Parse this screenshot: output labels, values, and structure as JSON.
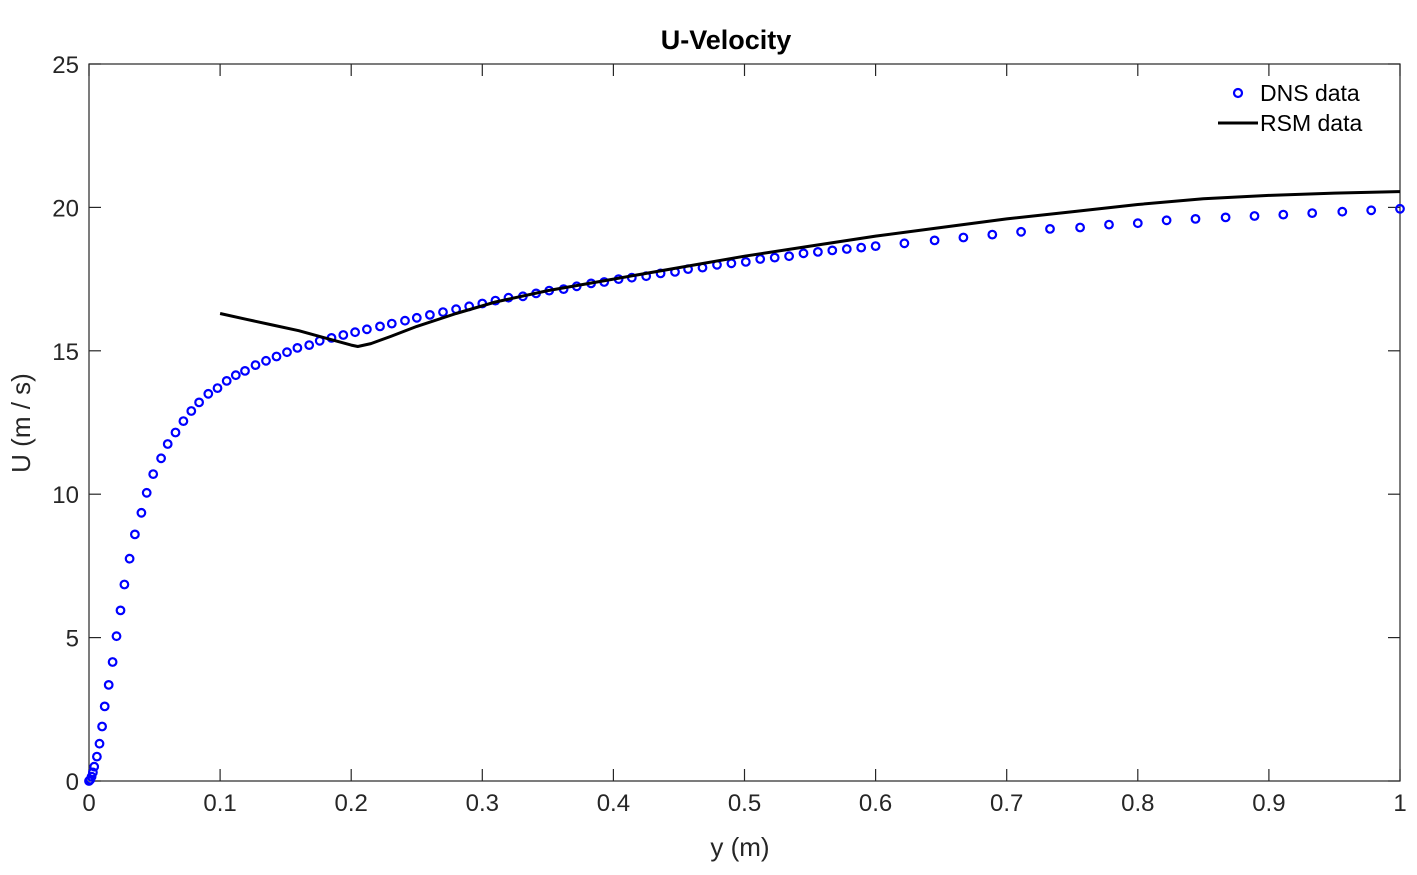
{
  "chart_data": {
    "type": "line",
    "title": "U-Velocity",
    "xlabel": "y (m)",
    "ylabel": "U (m / s)",
    "xlim": [
      0,
      1
    ],
    "ylim": [
      0,
      25
    ],
    "xticks": [
      "0",
      "0.1",
      "0.2",
      "0.3",
      "0.4",
      "0.5",
      "0.6",
      "0.7",
      "0.8",
      "0.9",
      "1"
    ],
    "yticks": [
      "0",
      "5",
      "10",
      "15",
      "20",
      "25"
    ],
    "grid": false,
    "legend_position": "top-right",
    "series": [
      {
        "name": "DNS data",
        "style": "markers",
        "color": "#0000ff",
        "x": [
          0.0,
          0.001,
          0.002,
          0.003,
          0.004,
          0.006,
          0.008,
          0.01,
          0.012,
          0.015,
          0.018,
          0.021,
          0.024,
          0.027,
          0.031,
          0.035,
          0.04,
          0.044,
          0.049,
          0.055,
          0.06,
          0.066,
          0.072,
          0.078,
          0.084,
          0.091,
          0.098,
          0.105,
          0.112,
          0.119,
          0.127,
          0.135,
          0.143,
          0.151,
          0.159,
          0.168,
          0.176,
          0.185,
          0.194,
          0.203,
          0.212,
          0.222,
          0.231,
          0.241,
          0.25,
          0.26,
          0.27,
          0.28,
          0.29,
          0.3,
          0.31,
          0.32,
          0.331,
          0.341,
          0.351,
          0.362,
          0.372,
          0.383,
          0.393,
          0.404,
          0.414,
          0.425,
          0.436,
          0.447,
          0.457,
          0.468,
          0.479,
          0.49,
          0.501,
          0.512,
          0.523,
          0.534,
          0.545,
          0.556,
          0.567,
          0.578,
          0.589,
          0.6,
          0.622,
          0.645,
          0.667,
          0.689,
          0.711,
          0.733,
          0.756,
          0.778,
          0.8,
          0.822,
          0.844,
          0.867,
          0.889,
          0.911,
          0.933,
          0.956,
          0.978,
          1.0
        ],
        "y": [
          0.0,
          0.05,
          0.15,
          0.3,
          0.5,
          0.85,
          1.3,
          1.9,
          2.6,
          3.35,
          4.15,
          5.05,
          5.95,
          6.85,
          7.75,
          8.6,
          9.35,
          10.05,
          10.7,
          11.25,
          11.75,
          12.15,
          12.55,
          12.9,
          13.2,
          13.5,
          13.7,
          13.95,
          14.15,
          14.3,
          14.5,
          14.65,
          14.8,
          14.95,
          15.1,
          15.2,
          15.35,
          15.45,
          15.55,
          15.65,
          15.75,
          15.85,
          15.95,
          16.05,
          16.15,
          16.25,
          16.35,
          16.45,
          16.55,
          16.65,
          16.75,
          16.85,
          16.9,
          17.0,
          17.1,
          17.15,
          17.25,
          17.35,
          17.4,
          17.5,
          17.55,
          17.6,
          17.7,
          17.75,
          17.85,
          17.9,
          18.0,
          18.05,
          18.1,
          18.2,
          18.25,
          18.3,
          18.4,
          18.45,
          18.5,
          18.55,
          18.6,
          18.65,
          18.75,
          18.85,
          18.95,
          19.05,
          19.15,
          19.25,
          19.3,
          19.4,
          19.45,
          19.55,
          19.6,
          19.65,
          19.7,
          19.75,
          19.8,
          19.85,
          19.9,
          19.95
        ]
      },
      {
        "name": "RSM data",
        "style": "line",
        "color": "#000000",
        "x": [
          0.1,
          0.12,
          0.14,
          0.16,
          0.18,
          0.2,
          0.205,
          0.215,
          0.23,
          0.25,
          0.28,
          0.31,
          0.35,
          0.4,
          0.45,
          0.5,
          0.55,
          0.6,
          0.65,
          0.7,
          0.75,
          0.8,
          0.85,
          0.9,
          0.95,
          1.0
        ],
        "y": [
          16.3,
          16.1,
          15.9,
          15.7,
          15.45,
          15.2,
          15.15,
          15.25,
          15.5,
          15.85,
          16.3,
          16.7,
          17.1,
          17.5,
          17.9,
          18.3,
          18.65,
          19.0,
          19.3,
          19.6,
          19.85,
          20.1,
          20.3,
          20.42,
          20.5,
          20.55
        ]
      }
    ]
  }
}
